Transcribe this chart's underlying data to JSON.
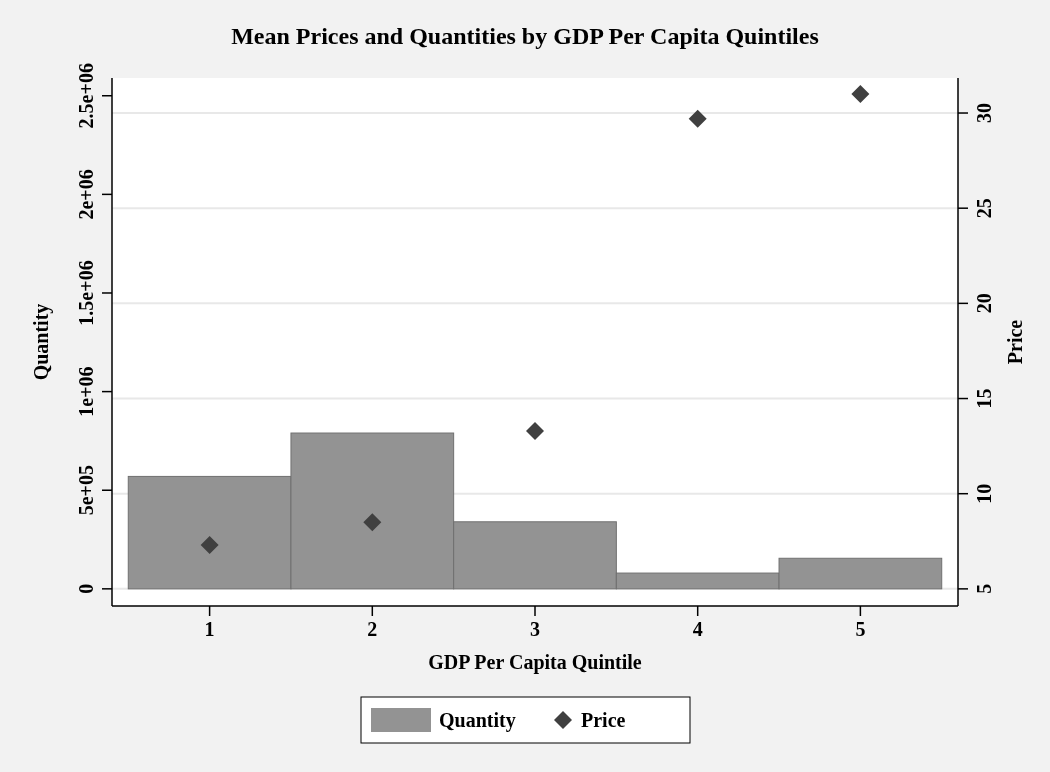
{
  "chart_data": {
    "type": "bar",
    "title": "Mean Prices and Quantities by GDP Per Capita Quintiles",
    "xlabel": "GDP Per Capita Quintile",
    "ylabel": "Quantity",
    "y2label": "Price",
    "categories": [
      "1",
      "2",
      "3",
      "4",
      "5"
    ],
    "series": [
      {
        "name": "Quantity",
        "color": "#939393",
        "values": [
          570000,
          790000,
          340000,
          80000,
          155000
        ]
      },
      {
        "name": "Price",
        "type": "scatter",
        "axis": "y2",
        "color": "#404040",
        "marker": "diamond",
        "values": [
          7.3,
          8.5,
          13.3,
          29.7,
          31.0
        ]
      }
    ],
    "ylim": [
      -87000,
      2590000
    ],
    "yticks": [
      0,
      {
        "value": 500000,
        "label": "5e+05"
      },
      {
        "value": 1000000,
        "label": "1e+06"
      },
      {
        "value": 1500000,
        "label": "1.5e+06"
      },
      {
        "value": 2000000,
        "label": "2e+06"
      },
      {
        "value": 2500000,
        "label": "2.5e+06"
      }
    ],
    "y2lim": [
      4.1,
      31.84
    ],
    "y2ticks": [
      5,
      10,
      15,
      20,
      25,
      30
    ],
    "grid": "y",
    "legend": "bottom"
  }
}
